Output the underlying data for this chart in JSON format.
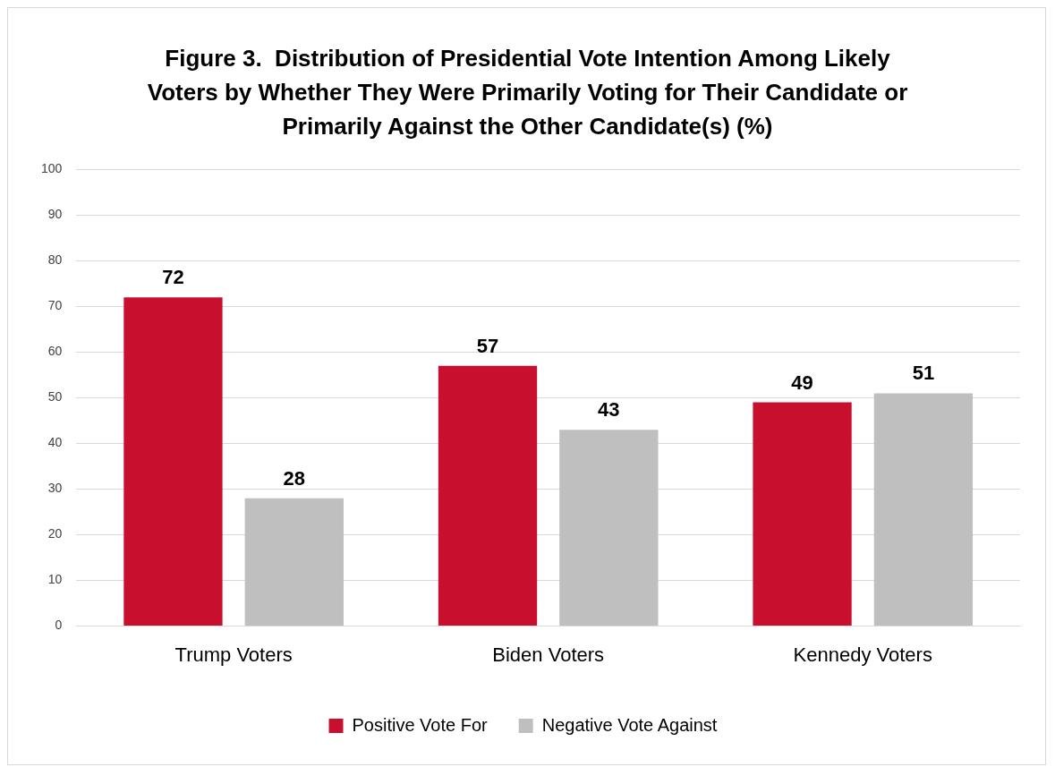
{
  "chart_data": {
    "type": "bar",
    "title": "Figure 3.  Distribution of Presidential Vote Intention Among Likely Voters by Whether They Were Primarily Voting for Their Candidate or Primarily Against the Other Candidate(s) (%)",
    "categories": [
      "Trump Voters",
      "Biden Voters",
      "Kennedy Voters"
    ],
    "series": [
      {
        "name": "Positive Vote For",
        "color": "#c8102e",
        "values": [
          72,
          57,
          49
        ]
      },
      {
        "name": "Negative Vote Against",
        "color": "#bfbfbf",
        "values": [
          28,
          43,
          51
        ]
      }
    ],
    "ylim": [
      0,
      100
    ],
    "yticks": [
      0,
      10,
      20,
      30,
      40,
      50,
      60,
      70,
      80,
      90,
      100
    ],
    "grid": "y",
    "legend": "bottom",
    "data_labels": true
  }
}
